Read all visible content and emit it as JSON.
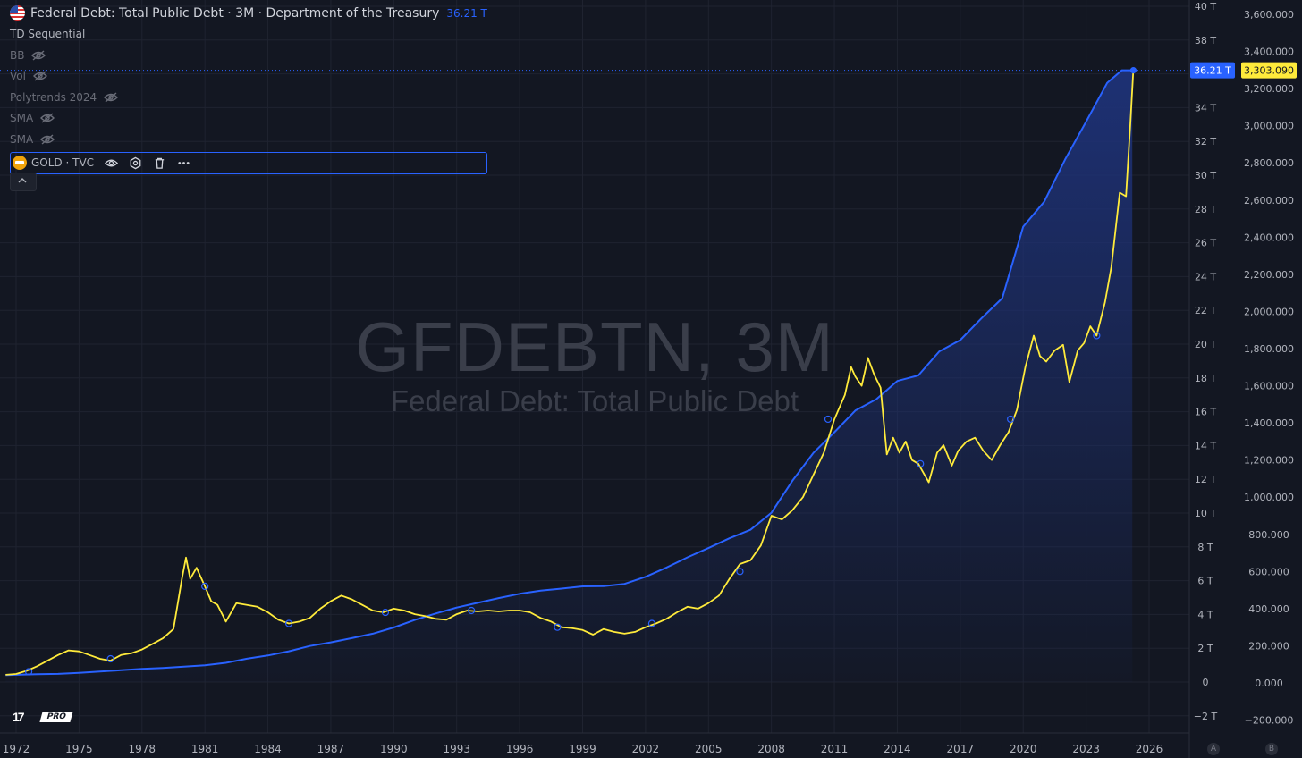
{
  "legend": {
    "main_title": "Federal Debt: Total Public Debt · 3M · Department of the Treasury",
    "main_value": "36.21 T",
    "indicators": [
      {
        "label": "TD Sequential",
        "hidden": false
      },
      {
        "label": "BB",
        "hidden": true
      },
      {
        "label": "Vol",
        "hidden": true
      },
      {
        "label": "Polytrends 2024",
        "hidden": true
      },
      {
        "label": "SMA",
        "hidden": true
      },
      {
        "label": "SMA",
        "hidden": true
      }
    ],
    "compare_symbol": "GOLD · TVC",
    "flag_icon": "us-flag-icon",
    "gold_icon": "gold-bars-icon",
    "eye_off_icon": "eye-off-icon",
    "toolbar_icons": [
      "eye-icon",
      "settings-icon",
      "trash-icon",
      "more-icon"
    ],
    "collapse_icon": "chevron-up-icon"
  },
  "watermark": {
    "symbol": "GFDEBTN, 3M",
    "name": "Federal Debt: Total Public Debt"
  },
  "logo": {
    "mark": "17",
    "badge": "PRO"
  },
  "scale_buttons": [
    "A",
    "B"
  ],
  "colors": {
    "background": "#131722",
    "debt_line": "#2962ff",
    "debt_fill_top": "#1e3278",
    "gold_line": "#ffeb3b",
    "grid": "#1f2330",
    "axis_text": "#b2b5be"
  },
  "chart_data": {
    "type": "line",
    "x_ticks": [
      "1972",
      "1975",
      "1978",
      "1981",
      "1984",
      "1987",
      "1990",
      "1993",
      "1996",
      "1999",
      "2002",
      "2005",
      "2008",
      "2011",
      "2014",
      "2017",
      "2020",
      "2023",
      "2026"
    ],
    "left_axis_ticks": [
      "40 T",
      "38 T",
      "36 T",
      "34 T",
      "32 T",
      "30 T",
      "28 T",
      "26 T",
      "24 T",
      "22 T",
      "20 T",
      "18 T",
      "16 T",
      "14 T",
      "12 T",
      "10 T",
      "8 T",
      "6 T",
      "4 T",
      "2 T",
      "0",
      "−2 T"
    ],
    "right_axis_ticks": [
      "3,600.000",
      "3,400.000",
      "3,200.000",
      "3,000.000",
      "2,800.000",
      "2,600.000",
      "2,400.000",
      "2,200.000",
      "2,000.000",
      "1,800.000",
      "1,600.000",
      "1,400.000",
      "1,200.000",
      "1,000.000",
      "800.000",
      "600.000",
      "400.000",
      "200.000",
      "0.000",
      "−200.000"
    ],
    "left_axis_range": [
      -2,
      40
    ],
    "right_axis_range": [
      -200,
      3600
    ],
    "last_value_labels": {
      "debt": "36.21 T",
      "gold": "3,303.090"
    },
    "series": [
      {
        "name": "Federal Debt: Total Public Debt",
        "axis": "left",
        "unit": "T",
        "fill": "area",
        "points": [
          [
            1971.5,
            0.41
          ],
          [
            1972,
            0.43
          ],
          [
            1973,
            0.46
          ],
          [
            1974,
            0.48
          ],
          [
            1975,
            0.54
          ],
          [
            1976,
            0.62
          ],
          [
            1977,
            0.7
          ],
          [
            1978,
            0.78
          ],
          [
            1979,
            0.83
          ],
          [
            1980,
            0.91
          ],
          [
            1981,
            0.99
          ],
          [
            1982,
            1.14
          ],
          [
            1983,
            1.38
          ],
          [
            1984,
            1.57
          ],
          [
            1985,
            1.82
          ],
          [
            1986,
            2.13
          ],
          [
            1987,
            2.35
          ],
          [
            1988,
            2.6
          ],
          [
            1989,
            2.86
          ],
          [
            1990,
            3.23
          ],
          [
            1991,
            3.67
          ],
          [
            1992,
            4.06
          ],
          [
            1993,
            4.41
          ],
          [
            1994,
            4.69
          ],
          [
            1995,
            4.97
          ],
          [
            1996,
            5.22
          ],
          [
            1997,
            5.41
          ],
          [
            1998,
            5.53
          ],
          [
            1999,
            5.66
          ],
          [
            2000,
            5.67
          ],
          [
            2001,
            5.81
          ],
          [
            2002,
            6.23
          ],
          [
            2003,
            6.78
          ],
          [
            2004,
            7.38
          ],
          [
            2005,
            7.93
          ],
          [
            2006,
            8.51
          ],
          [
            2007,
            9.01
          ],
          [
            2008,
            10.02
          ],
          [
            2009,
            11.91
          ],
          [
            2010,
            13.56
          ],
          [
            2011,
            14.79
          ],
          [
            2012,
            16.07
          ],
          [
            2013,
            16.74
          ],
          [
            2014,
            17.82
          ],
          [
            2015,
            18.15
          ],
          [
            2016,
            19.57
          ],
          [
            2017,
            20.24
          ],
          [
            2018,
            21.52
          ],
          [
            2019,
            22.72
          ],
          [
            2020,
            26.95
          ],
          [
            2021,
            28.43
          ],
          [
            2022,
            30.93
          ],
          [
            2023,
            33.17
          ],
          [
            2024,
            35.46
          ],
          [
            2024.7,
            36.21
          ],
          [
            2025.2,
            36.21
          ]
        ]
      },
      {
        "name": "GOLD · TVC",
        "axis": "right",
        "unit": "USD",
        "points": [
          [
            1971.5,
            44
          ],
          [
            1972,
            48
          ],
          [
            1972.5,
            65
          ],
          [
            1973,
            90
          ],
          [
            1973.5,
            120
          ],
          [
            1974,
            150
          ],
          [
            1974.5,
            175
          ],
          [
            1975,
            170
          ],
          [
            1975.5,
            150
          ],
          [
            1976,
            130
          ],
          [
            1976.5,
            120
          ],
          [
            1977,
            150
          ],
          [
            1977.5,
            160
          ],
          [
            1978,
            180
          ],
          [
            1978.5,
            210
          ],
          [
            1979,
            240
          ],
          [
            1979.5,
            290
          ],
          [
            1979.9,
            560
          ],
          [
            1980.1,
            675
          ],
          [
            1980.3,
            560
          ],
          [
            1980.6,
            620
          ],
          [
            1981,
            520
          ],
          [
            1981.3,
            440
          ],
          [
            1981.6,
            420
          ],
          [
            1982,
            330
          ],
          [
            1982.5,
            430
          ],
          [
            1983,
            420
          ],
          [
            1983.5,
            410
          ],
          [
            1984,
            380
          ],
          [
            1984.5,
            340
          ],
          [
            1985,
            320
          ],
          [
            1985.5,
            330
          ],
          [
            1986,
            350
          ],
          [
            1986.5,
            400
          ],
          [
            1987,
            440
          ],
          [
            1987.5,
            470
          ],
          [
            1988,
            450
          ],
          [
            1988.5,
            420
          ],
          [
            1989,
            390
          ],
          [
            1989.5,
            380
          ],
          [
            1990,
            400
          ],
          [
            1990.5,
            390
          ],
          [
            1991,
            370
          ],
          [
            1991.5,
            360
          ],
          [
            1992,
            345
          ],
          [
            1992.5,
            340
          ],
          [
            1993,
            370
          ],
          [
            1993.5,
            390
          ],
          [
            1994,
            385
          ],
          [
            1994.5,
            390
          ],
          [
            1995,
            385
          ],
          [
            1995.5,
            390
          ],
          [
            1996,
            390
          ],
          [
            1996.5,
            380
          ],
          [
            1997,
            350
          ],
          [
            1997.5,
            330
          ],
          [
            1998,
            300
          ],
          [
            1998.5,
            295
          ],
          [
            1999,
            285
          ],
          [
            1999.5,
            260
          ],
          [
            2000,
            290
          ],
          [
            2000.5,
            275
          ],
          [
            2001,
            265
          ],
          [
            2001.5,
            275
          ],
          [
            2002,
            300
          ],
          [
            2002.5,
            320
          ],
          [
            2003,
            345
          ],
          [
            2003.5,
            380
          ],
          [
            2004,
            410
          ],
          [
            2004.5,
            400
          ],
          [
            2005,
            430
          ],
          [
            2005.5,
            470
          ],
          [
            2006,
            560
          ],
          [
            2006.5,
            640
          ],
          [
            2007,
            660
          ],
          [
            2007.5,
            740
          ],
          [
            2008,
            900
          ],
          [
            2008.5,
            880
          ],
          [
            2009,
            930
          ],
          [
            2009.5,
            1000
          ],
          [
            2010,
            1120
          ],
          [
            2010.5,
            1240
          ],
          [
            2011,
            1420
          ],
          [
            2011.5,
            1550
          ],
          [
            2011.8,
            1700
          ],
          [
            2012,
            1650
          ],
          [
            2012.3,
            1600
          ],
          [
            2012.6,
            1750
          ],
          [
            2012.9,
            1660
          ],
          [
            2013.2,
            1590
          ],
          [
            2013.5,
            1230
          ],
          [
            2013.8,
            1320
          ],
          [
            2014.1,
            1240
          ],
          [
            2014.4,
            1300
          ],
          [
            2014.7,
            1200
          ],
          [
            2015,
            1180
          ],
          [
            2015.5,
            1080
          ],
          [
            2015.9,
            1240
          ],
          [
            2016.2,
            1280
          ],
          [
            2016.6,
            1170
          ],
          [
            2016.9,
            1250
          ],
          [
            2017.3,
            1300
          ],
          [
            2017.7,
            1320
          ],
          [
            2018.1,
            1250
          ],
          [
            2018.5,
            1200
          ],
          [
            2018.9,
            1280
          ],
          [
            2019.3,
            1350
          ],
          [
            2019.7,
            1470
          ],
          [
            2020.1,
            1700
          ],
          [
            2020.5,
            1870
          ],
          [
            2020.8,
            1760
          ],
          [
            2021.1,
            1730
          ],
          [
            2021.5,
            1790
          ],
          [
            2021.9,
            1820
          ],
          [
            2022.2,
            1620
          ],
          [
            2022.6,
            1790
          ],
          [
            2022.9,
            1830
          ],
          [
            2023.2,
            1920
          ],
          [
            2023.5,
            1870
          ],
          [
            2023.9,
            2050
          ],
          [
            2024.2,
            2240
          ],
          [
            2024.6,
            2640
          ],
          [
            2024.9,
            2620
          ],
          [
            2025.1,
            3000
          ],
          [
            2025.25,
            3303
          ]
        ]
      }
    ],
    "markers": [
      {
        "axis": "right",
        "x": 1972.6,
        "y": 60
      },
      {
        "axis": "right",
        "x": 1976.5,
        "y": 130
      },
      {
        "axis": "right",
        "x": 1981,
        "y": 520
      },
      {
        "axis": "right",
        "x": 1985,
        "y": 320
      },
      {
        "axis": "right",
        "x": 1989.6,
        "y": 380
      },
      {
        "axis": "right",
        "x": 1993.7,
        "y": 390
      },
      {
        "axis": "right",
        "x": 1997.8,
        "y": 300
      },
      {
        "axis": "right",
        "x": 2002.3,
        "y": 320
      },
      {
        "axis": "right",
        "x": 2006.5,
        "y": 600
      },
      {
        "axis": "right",
        "x": 2010.7,
        "y": 1420
      },
      {
        "axis": "right",
        "x": 2015.1,
        "y": 1180
      },
      {
        "axis": "right",
        "x": 2019.4,
        "y": 1420
      },
      {
        "axis": "right",
        "x": 2023.5,
        "y": 1870
      },
      {
        "axis": "left",
        "x": 2025.25,
        "y": 36.21
      }
    ],
    "last_price_line": {
      "axis": "left",
      "value": 36.21,
      "style": "dotted"
    },
    "grid": true
  }
}
